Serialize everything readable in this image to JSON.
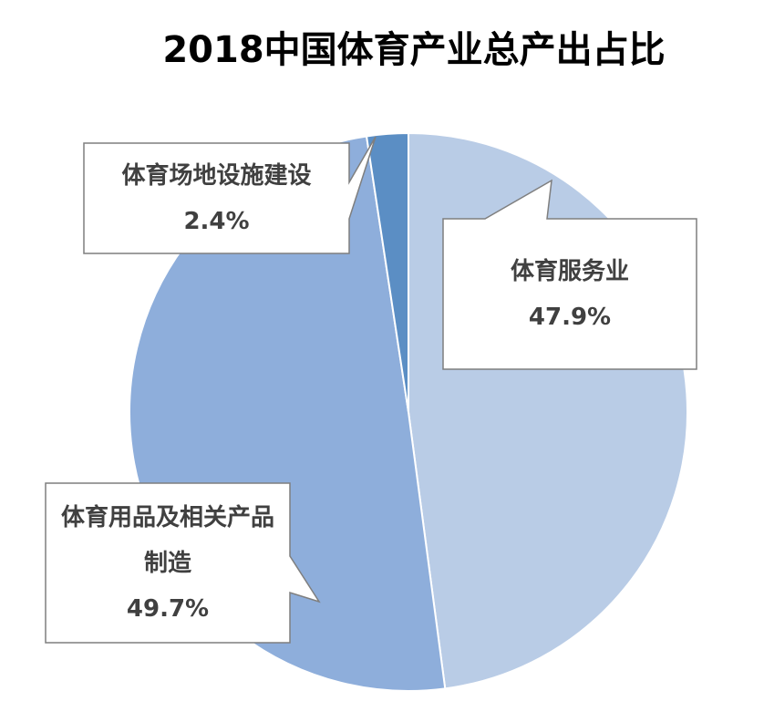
{
  "chart_data": {
    "type": "pie",
    "title": "2018中国体育产业总产出占比",
    "categories": [
      "体育服务业",
      "体育用品及相关产品制造",
      "体育场地设施建设"
    ],
    "values": [
      47.9,
      49.7,
      2.4
    ],
    "value_labels": [
      "47.9%",
      "49.7%",
      "2.4%"
    ],
    "colors": [
      "#b9cce6",
      "#8eaedb",
      "#5b8ec4"
    ]
  }
}
